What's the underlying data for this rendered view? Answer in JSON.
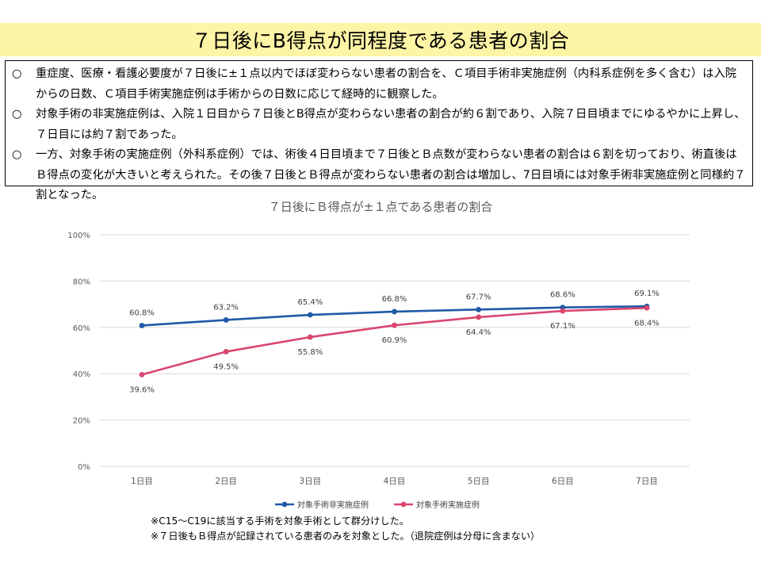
{
  "page_title": "７日後にB得点が同程度である患者の割合",
  "summary": {
    "bullet": "○",
    "items": [
      "重症度、医療・看護必要度が７日後に±１点以内でほぼ変わらない患者の割合を、Ｃ項目手術非実施症例（内科系症例を多く含む）は入院からの日数、Ｃ項目手術実施症例は手術からの日数に応じて経時的に観察した。",
      "対象手術の非実施症例は、入院１日目から７日後とB得点が変わらない患者の割合が約６割であり、入院７日目頃までにゆるやかに上昇し、７日目には約７割であった。",
      "一方、対象手術の実施症例（外科系症例）では、術後４日目頃まで７日後とＢ点数が変わらない患者の割合は６割を切っており、術直後はＢ得点の変化が大きいと考えられた。その後７日後とＢ得点が変わらない患者の割合は増加し、7日目頃には対象手術非実施症例と同様約７割となった。"
    ]
  },
  "chart_data": {
    "type": "line",
    "title": "７日後にＢ得点が±１点である患者の割合",
    "categories": [
      "1日目",
      "2日目",
      "3日目",
      "4日目",
      "5日目",
      "6日目",
      "7日目"
    ],
    "ylim": [
      0,
      100
    ],
    "yticks": [
      "0%",
      "20%",
      "40%",
      "60%",
      "80%",
      "100%"
    ],
    "grid": true,
    "legend_position": "bottom",
    "series": [
      {
        "name": "対象手術非実施症例",
        "color": "#1f5aa6",
        "values": [
          60.8,
          63.2,
          65.4,
          66.8,
          67.7,
          68.6,
          69.1
        ],
        "labels": [
          "60.8%",
          "63.2%",
          "65.4%",
          "66.8%",
          "67.7%",
          "68.6%",
          "69.1%"
        ],
        "label_side": "above"
      },
      {
        "name": "対象手術実施症例",
        "color": "#d9476f",
        "values": [
          39.6,
          49.5,
          55.8,
          60.9,
          64.4,
          67.1,
          68.4
        ],
        "labels": [
          "39.6%",
          "49.5%",
          "55.8%",
          "60.9%",
          "64.4%",
          "67.1%",
          "68.4%"
        ],
        "label_side": "below"
      }
    ]
  },
  "footnotes": [
    "※C15～C19に該当する手術を対象手術として群分けした。",
    "※７日後もＢ得点が記録されている患者のみを対象とした。（退院症例は分母に含まない）"
  ]
}
